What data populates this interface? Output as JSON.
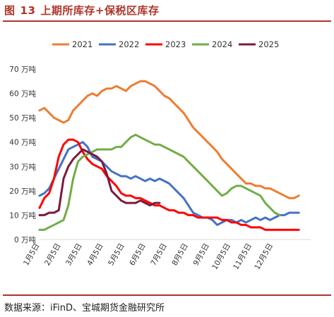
{
  "figure": {
    "label": "图",
    "number": "13",
    "title": "上期所库存+保税区库存",
    "source": "数据来源：iFinD、宝城期货金融研究所"
  },
  "colors": {
    "accent": "#b0342b",
    "series": [
      "#ed7d31",
      "#4472c4",
      "#ff0000",
      "#70ad47",
      "#7b1a3e"
    ]
  },
  "chart_data": {
    "type": "line",
    "x_unit": "week",
    "xtick_labels": [
      "1月5日",
      "2月5日",
      "3月5日",
      "4月5日",
      "5月5日",
      "6月5日",
      "7月5日",
      "8月5日",
      "9月5日",
      "10月5日",
      "11月5日",
      "12月5日"
    ],
    "ytick_labels": [
      "0 万吨",
      "10 万吨",
      "20 万吨",
      "30 万吨",
      "40 万吨",
      "50 万吨",
      "60 万吨",
      "70 万吨"
    ],
    "ylim": [
      0,
      70
    ],
    "grid": false,
    "legend_position": "top",
    "series": [
      {
        "name": "2021",
        "points": [
          [
            1,
            53
          ],
          [
            2,
            54
          ],
          [
            3,
            52
          ],
          [
            4,
            50
          ],
          [
            5,
            49
          ],
          [
            6,
            48
          ],
          [
            7,
            49
          ],
          [
            8,
            53
          ],
          [
            9,
            55
          ],
          [
            10,
            57
          ],
          [
            11,
            59
          ],
          [
            12,
            60
          ],
          [
            13,
            59
          ],
          [
            14,
            61
          ],
          [
            15,
            62
          ],
          [
            16,
            62
          ],
          [
            17,
            63
          ],
          [
            18,
            62
          ],
          [
            19,
            61
          ],
          [
            20,
            63
          ],
          [
            21,
            64
          ],
          [
            22,
            65
          ],
          [
            23,
            65
          ],
          [
            24,
            64
          ],
          [
            25,
            63
          ],
          [
            26,
            61
          ],
          [
            27,
            59
          ],
          [
            28,
            58
          ],
          [
            29,
            56
          ],
          [
            30,
            54
          ],
          [
            31,
            52
          ],
          [
            32,
            49
          ],
          [
            33,
            46
          ],
          [
            34,
            44
          ],
          [
            35,
            42
          ],
          [
            36,
            40
          ],
          [
            37,
            38
          ],
          [
            38,
            36
          ],
          [
            39,
            33
          ],
          [
            40,
            31
          ],
          [
            41,
            29
          ],
          [
            42,
            27
          ],
          [
            43,
            25
          ],
          [
            44,
            23
          ],
          [
            45,
            23
          ],
          [
            46,
            22
          ],
          [
            47,
            22
          ],
          [
            48,
            21
          ],
          [
            49,
            21
          ],
          [
            50,
            20
          ],
          [
            51,
            19
          ],
          [
            52,
            18
          ],
          [
            53,
            17
          ],
          [
            54,
            17
          ],
          [
            55,
            18
          ]
        ]
      },
      {
        "name": "2022",
        "points": [
          [
            1,
            18
          ],
          [
            2,
            19
          ],
          [
            3,
            21
          ],
          [
            4,
            25
          ],
          [
            5,
            29
          ],
          [
            6,
            33
          ],
          [
            7,
            37
          ],
          [
            8,
            38
          ],
          [
            9,
            39
          ],
          [
            10,
            40
          ],
          [
            11,
            38
          ],
          [
            12,
            34
          ],
          [
            13,
            33
          ],
          [
            14,
            32
          ],
          [
            15,
            30
          ],
          [
            16,
            28
          ],
          [
            17,
            27
          ],
          [
            18,
            26
          ],
          [
            19,
            26
          ],
          [
            20,
            25
          ],
          [
            21,
            26
          ],
          [
            22,
            25
          ],
          [
            23,
            24
          ],
          [
            24,
            25
          ],
          [
            25,
            24
          ],
          [
            26,
            25
          ],
          [
            27,
            24
          ],
          [
            28,
            23
          ],
          [
            29,
            21
          ],
          [
            30,
            19
          ],
          [
            31,
            17
          ],
          [
            32,
            14
          ],
          [
            33,
            11
          ],
          [
            34,
            10
          ],
          [
            35,
            9
          ],
          [
            36,
            9
          ],
          [
            37,
            8
          ],
          [
            38,
            6
          ],
          [
            39,
            7
          ],
          [
            40,
            8
          ],
          [
            41,
            8
          ],
          [
            42,
            7
          ],
          [
            43,
            8
          ],
          [
            44,
            7
          ],
          [
            45,
            8
          ],
          [
            46,
            9
          ],
          [
            47,
            8
          ],
          [
            48,
            9
          ],
          [
            49,
            8
          ],
          [
            50,
            9
          ],
          [
            51,
            10
          ],
          [
            52,
            10
          ],
          [
            53,
            11
          ],
          [
            54,
            11
          ],
          [
            55,
            11
          ]
        ]
      },
      {
        "name": "2023",
        "points": [
          [
            1,
            13
          ],
          [
            2,
            17
          ],
          [
            3,
            19
          ],
          [
            4,
            25
          ],
          [
            5,
            34
          ],
          [
            6,
            39
          ],
          [
            7,
            41
          ],
          [
            8,
            41
          ],
          [
            9,
            40
          ],
          [
            10,
            36
          ],
          [
            11,
            33
          ],
          [
            12,
            31
          ],
          [
            13,
            30
          ],
          [
            14,
            29
          ],
          [
            15,
            26
          ],
          [
            16,
            24
          ],
          [
            17,
            22
          ],
          [
            18,
            19
          ],
          [
            19,
            18
          ],
          [
            20,
            18
          ],
          [
            21,
            17
          ],
          [
            22,
            17
          ],
          [
            23,
            16
          ],
          [
            24,
            15
          ],
          [
            25,
            14
          ],
          [
            26,
            14
          ],
          [
            27,
            13
          ],
          [
            28,
            12
          ],
          [
            29,
            12
          ],
          [
            30,
            11
          ],
          [
            31,
            11
          ],
          [
            32,
            10
          ],
          [
            33,
            10
          ],
          [
            34,
            9
          ],
          [
            35,
            9
          ],
          [
            36,
            9
          ],
          [
            37,
            9
          ],
          [
            38,
            9
          ],
          [
            39,
            8
          ],
          [
            40,
            8
          ],
          [
            41,
            7
          ],
          [
            42,
            7
          ],
          [
            43,
            6
          ],
          [
            44,
            6
          ],
          [
            45,
            5
          ],
          [
            46,
            5
          ],
          [
            47,
            5
          ],
          [
            48,
            4
          ],
          [
            49,
            4
          ],
          [
            50,
            4
          ],
          [
            51,
            4
          ],
          [
            52,
            4
          ],
          [
            53,
            4
          ],
          [
            54,
            4
          ],
          [
            55,
            4
          ]
        ]
      },
      {
        "name": "2024",
        "points": [
          [
            1,
            4
          ],
          [
            2,
            4
          ],
          [
            3,
            5
          ],
          [
            4,
            6
          ],
          [
            5,
            7
          ],
          [
            6,
            8
          ],
          [
            7,
            14
          ],
          [
            8,
            25
          ],
          [
            9,
            32
          ],
          [
            10,
            34
          ],
          [
            11,
            35
          ],
          [
            12,
            36
          ],
          [
            13,
            37
          ],
          [
            14,
            37
          ],
          [
            15,
            37
          ],
          [
            16,
            37
          ],
          [
            17,
            38
          ],
          [
            18,
            38
          ],
          [
            19,
            40
          ],
          [
            20,
            42
          ],
          [
            21,
            43
          ],
          [
            22,
            42
          ],
          [
            23,
            41
          ],
          [
            24,
            40
          ],
          [
            25,
            39
          ],
          [
            26,
            39
          ],
          [
            27,
            38
          ],
          [
            28,
            37
          ],
          [
            29,
            36
          ],
          [
            30,
            35
          ],
          [
            31,
            34
          ],
          [
            32,
            32
          ],
          [
            33,
            30
          ],
          [
            34,
            28
          ],
          [
            35,
            26
          ],
          [
            36,
            24
          ],
          [
            37,
            22
          ],
          [
            38,
            20
          ],
          [
            39,
            18
          ],
          [
            40,
            19
          ],
          [
            41,
            21
          ],
          [
            42,
            22
          ],
          [
            43,
            22
          ],
          [
            44,
            21
          ],
          [
            45,
            20
          ],
          [
            46,
            19
          ],
          [
            47,
            18
          ],
          [
            48,
            15
          ],
          [
            49,
            13
          ],
          [
            50,
            11
          ],
          [
            51,
            10
          ]
        ]
      },
      {
        "name": "2025",
        "points": [
          [
            1,
            10
          ],
          [
            2,
            10
          ],
          [
            3,
            11
          ],
          [
            4,
            11
          ],
          [
            5,
            12
          ],
          [
            6,
            25
          ],
          [
            7,
            30
          ],
          [
            8,
            33
          ],
          [
            9,
            35
          ],
          [
            10,
            37
          ],
          [
            11,
            36
          ],
          [
            12,
            35
          ],
          [
            13,
            34
          ],
          [
            14,
            32
          ],
          [
            15,
            27
          ],
          [
            16,
            20
          ],
          [
            17,
            18
          ],
          [
            18,
            16
          ],
          [
            19,
            15
          ],
          [
            20,
            15
          ],
          [
            21,
            15
          ],
          [
            22,
            16
          ],
          [
            23,
            15
          ],
          [
            24,
            14
          ],
          [
            25,
            15
          ],
          [
            26,
            15
          ]
        ]
      }
    ]
  }
}
